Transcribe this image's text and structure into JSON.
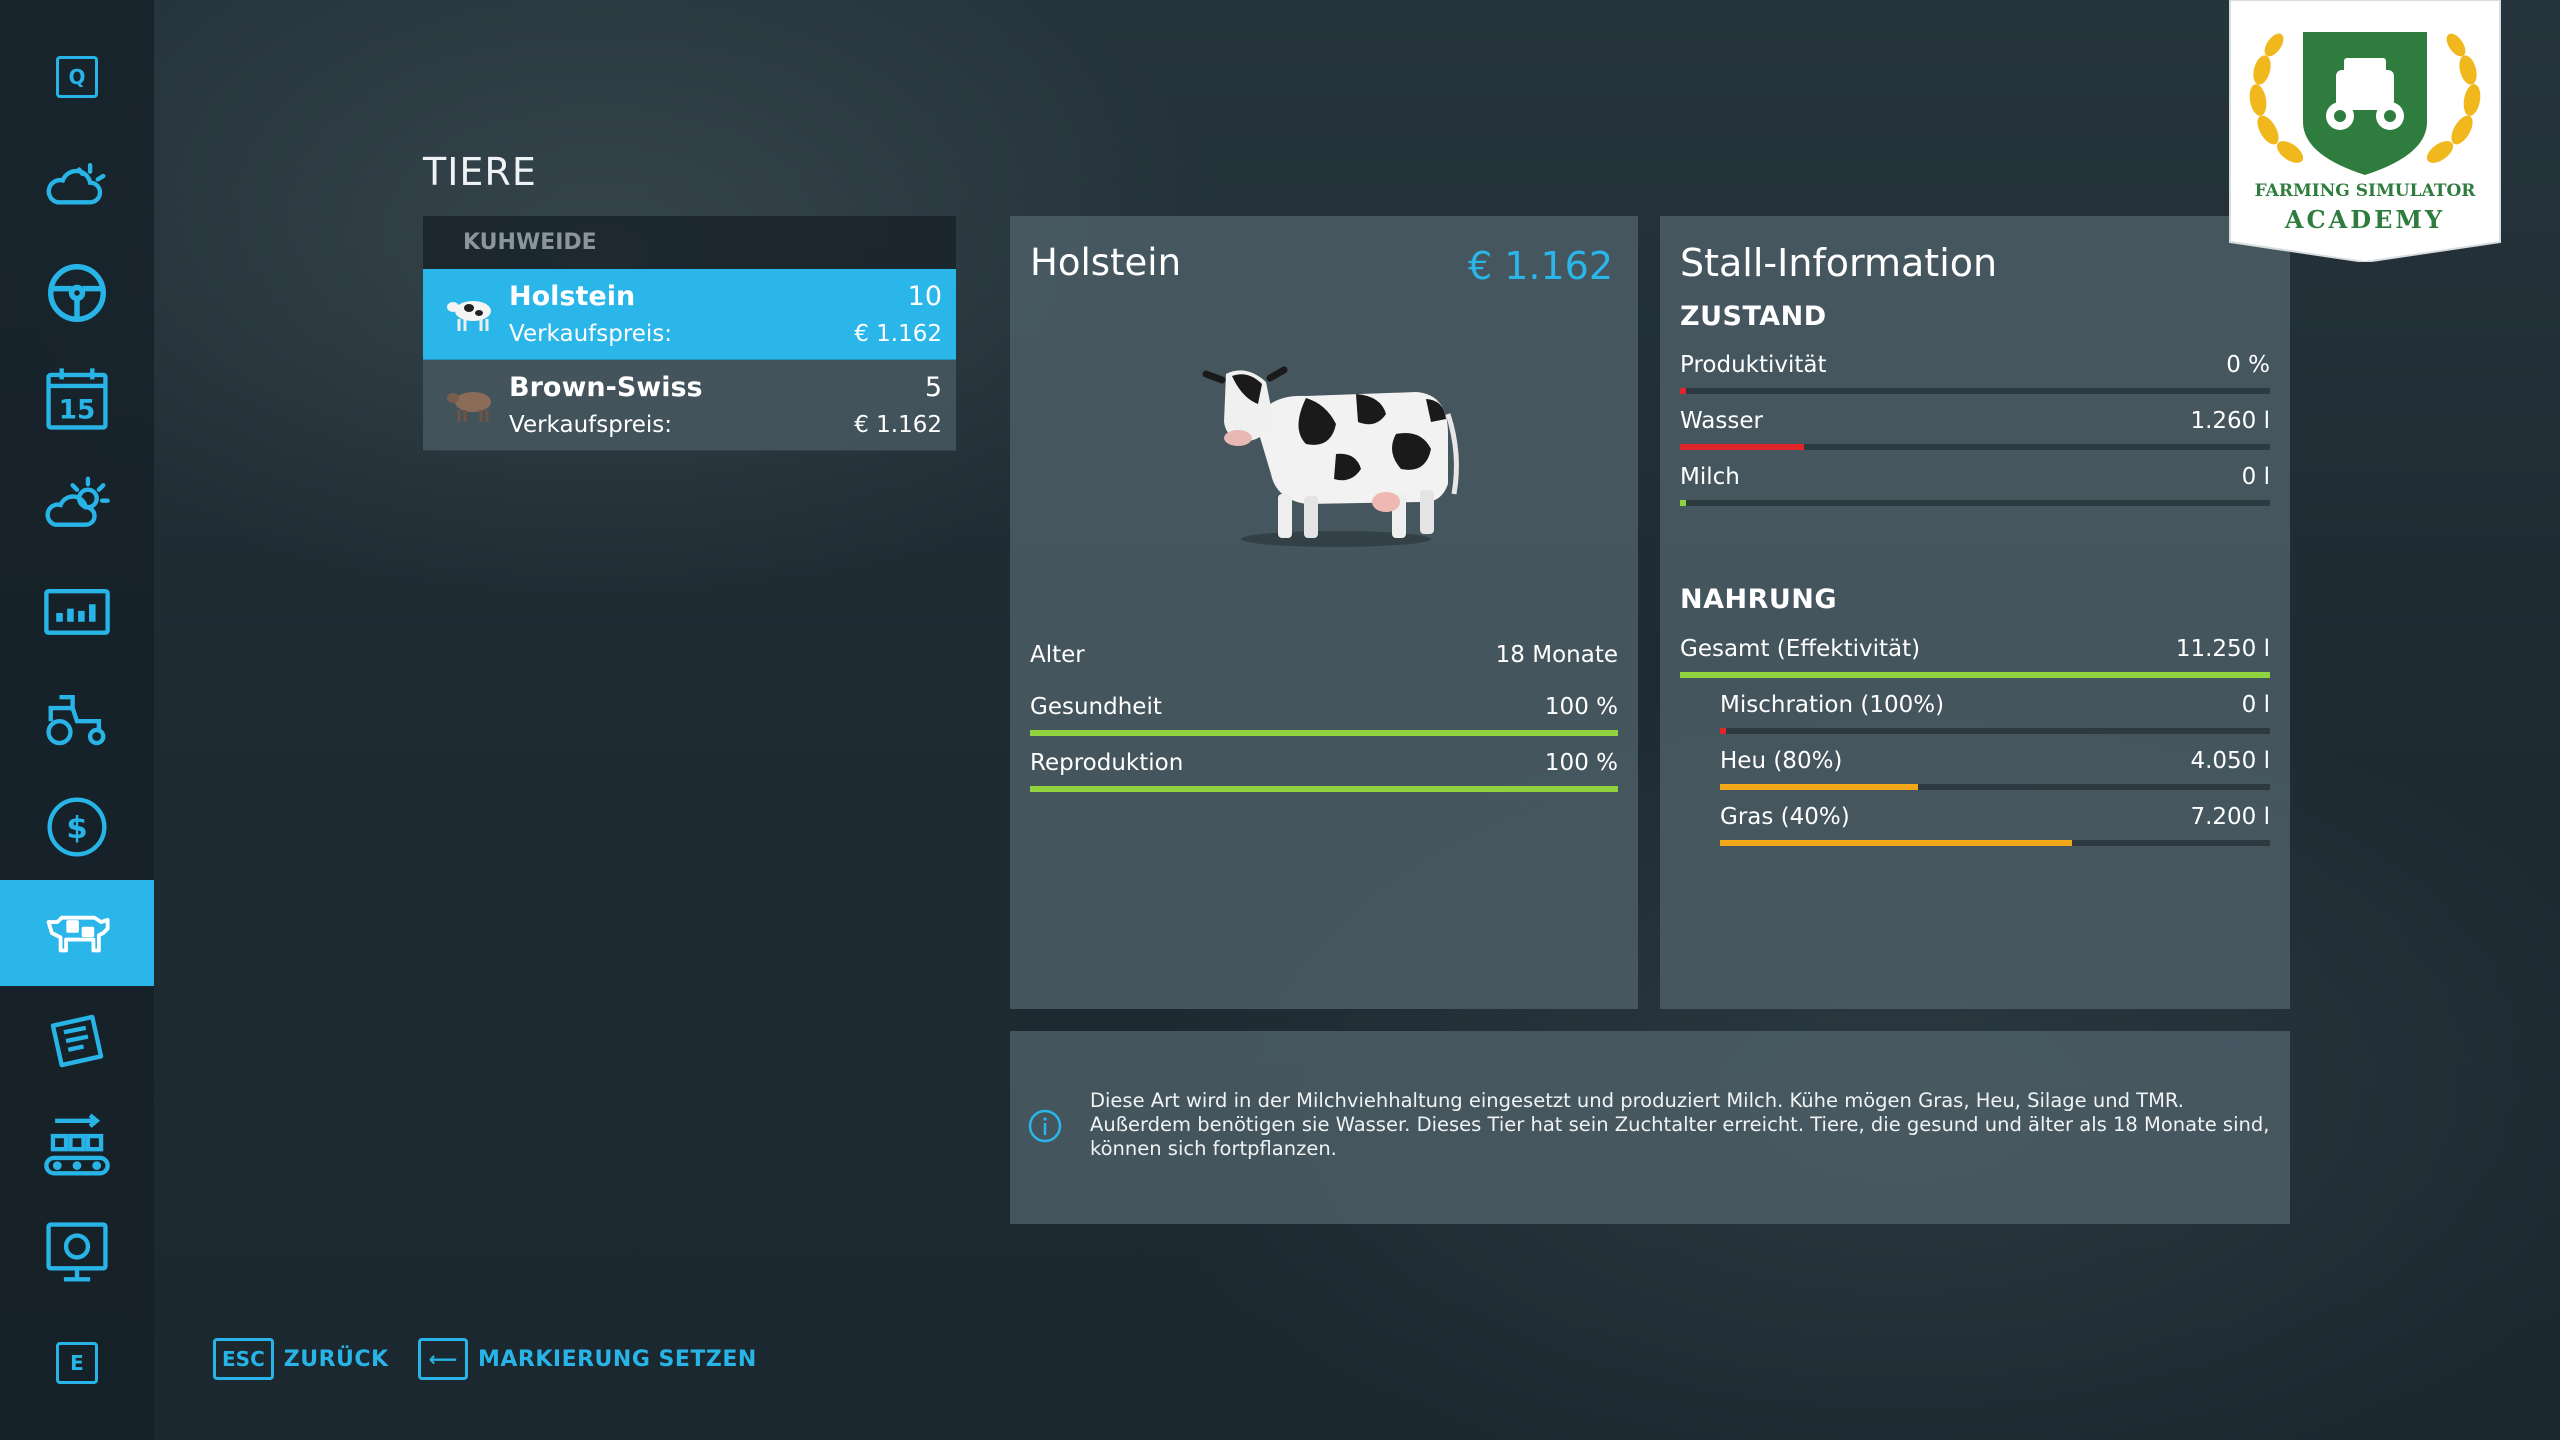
{
  "sidebar": {
    "top_key": "Q",
    "bottom_key": "E",
    "items": [
      {
        "icon": "weather-icon"
      },
      {
        "icon": "steering-wheel-icon"
      },
      {
        "icon": "calendar-icon",
        "label": "15"
      },
      {
        "icon": "sun-cloud-icon"
      },
      {
        "icon": "statistics-icon"
      },
      {
        "icon": "tractor-icon"
      },
      {
        "icon": "dollar-coin-icon"
      },
      {
        "icon": "cow-icon"
      },
      {
        "icon": "contracts-icon"
      },
      {
        "icon": "production-icon"
      },
      {
        "icon": "tutorial-screen-icon"
      }
    ],
    "active_icon": "cow-icon"
  },
  "page": {
    "title": "TIERE"
  },
  "list": {
    "header": "KUHWEIDE",
    "items": [
      {
        "name": "Holstein",
        "count": "10",
        "price_label": "Verkaufspreis:",
        "price": "€ 1.162"
      },
      {
        "name": "Brown-Swiss",
        "count": "5",
        "price_label": "Verkaufspreis:",
        "price": "€ 1.162"
      }
    ]
  },
  "detail": {
    "name": "Holstein",
    "price": "€ 1.162",
    "stats": [
      {
        "label": "Alter",
        "value": "18 Monate"
      },
      {
        "label": "Gesundheit",
        "value": "100 %",
        "fill": 1.0,
        "color": "#8fd13f"
      },
      {
        "label": "Reproduktion",
        "value": "100 %",
        "fill": 1.0,
        "color": "#8fd13f"
      }
    ]
  },
  "stall": {
    "title": "Stall-Information",
    "condition_heading": "ZUSTAND",
    "condition": [
      {
        "label": "Produktivität",
        "value": "0 %",
        "fill": 0.01,
        "color": "#e0262b"
      },
      {
        "label": "Wasser",
        "value": "1.260 l",
        "fill": 0.21,
        "color": "#e0262b"
      },
      {
        "label": "Milch",
        "value": "0 l",
        "fill": 0.01,
        "color": "#8fd13f"
      }
    ],
    "food_heading": "NAHRUNG",
    "food_total": {
      "label": "Gesamt (Effektivität)",
      "value": "11.250 l",
      "fill": 1.0,
      "color": "#8fd13f"
    },
    "food_items": [
      {
        "label": "Mischration (100%)",
        "value": "0 l",
        "fill": 0.01,
        "color": "#e0262b"
      },
      {
        "label": "Heu (80%)",
        "value": "4.050 l",
        "fill": 0.36,
        "color": "#f2a818"
      },
      {
        "label": "Gras (40%)",
        "value": "7.200 l",
        "fill": 0.64,
        "color": "#f2a818"
      }
    ]
  },
  "info": {
    "text": "Diese Art wird in der Milchviehhaltung eingesetzt und produziert Milch. Kühe mögen Gras, Heu, Silage und TMR. Außerdem benötigen sie Wasser. Dieses Tier hat sein Zuchtalter erreicht. Tiere, die gesund und älter als 18 Monate sind, können sich fortpflanzen."
  },
  "actions": {
    "back_key": "ESC",
    "back_label": "ZURÜCK",
    "mark_key": "⟵",
    "mark_label": "MARKIERUNG SETZEN"
  },
  "badge": {
    "line1": "FARMING SIMULATOR",
    "line2": "ACADEMY",
    "colors": {
      "shield": "#2e7d3e",
      "laurel": "#f0b81c",
      "text": "#2e7d3e"
    }
  },
  "colors": {
    "accent": "#2bb6ea"
  }
}
